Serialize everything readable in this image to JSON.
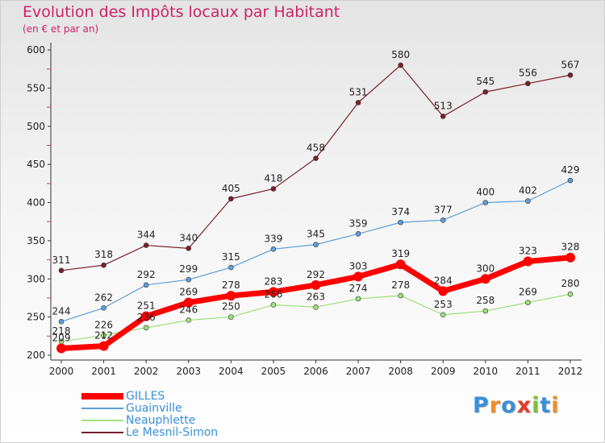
{
  "chart_data": {
    "type": "line",
    "title": "Evolution des Impôts locaux par Habitant",
    "subtitle": "(en € et par an)",
    "xlabel": "",
    "ylabel": "",
    "x": [
      "2000",
      "2001",
      "2002",
      "2003",
      "2004",
      "2005",
      "2006",
      "2007",
      "2008",
      "2009",
      "2010",
      "2011",
      "2012"
    ],
    "ylim": [
      200,
      600
    ],
    "yticks": [
      200,
      250,
      300,
      350,
      400,
      450,
      500,
      550,
      600
    ],
    "grid": false,
    "legend_position": "bottom-left",
    "series": [
      {
        "name": "Le Mesnil-Simon",
        "color": "#7a1f2b",
        "width": 1.2,
        "values": [
          311,
          318,
          344,
          340,
          405,
          418,
          458,
          531,
          580,
          513,
          545,
          556,
          567
        ]
      },
      {
        "name": "Guainville",
        "color": "#5d9ed8",
        "width": 1.2,
        "values": [
          244,
          262,
          292,
          299,
          315,
          339,
          345,
          359,
          374,
          377,
          400,
          402,
          429
        ]
      },
      {
        "name": "Neauphlette",
        "color": "#9fe07a",
        "width": 1.2,
        "values": [
          218,
          226,
          236,
          246,
          250,
          266,
          263,
          274,
          278,
          253,
          258,
          269,
          280
        ]
      },
      {
        "name": "GILLES",
        "color": "#ff0000",
        "width": 7,
        "values": [
          209,
          212,
          251,
          269,
          278,
          283,
          292,
          303,
          319,
          284,
          300,
          323,
          328
        ]
      }
    ]
  },
  "legend": {
    "items": [
      {
        "label": "GILLES",
        "color": "#ff0000",
        "thickness": 8
      },
      {
        "label": "Guainville",
        "color": "#5d9ed8",
        "thickness": 2
      },
      {
        "label": "Neauphlette",
        "color": "#9fe07a",
        "thickness": 2
      },
      {
        "label": "Le Mesnil-Simon",
        "color": "#7a1f2b",
        "thickness": 2
      }
    ]
  },
  "logo": {
    "letters": [
      {
        "char": "P",
        "color": "#3a8fd8"
      },
      {
        "char": "r",
        "color": "#f28c28"
      },
      {
        "char": "o",
        "color": "#3a8fd8"
      },
      {
        "char": "x",
        "color": "#e23b2e"
      },
      {
        "char": "i",
        "color": "#7fbf3f"
      },
      {
        "char": "t",
        "color": "#3a8fd8"
      },
      {
        "char": "i",
        "color": "#f28c28"
      }
    ]
  }
}
